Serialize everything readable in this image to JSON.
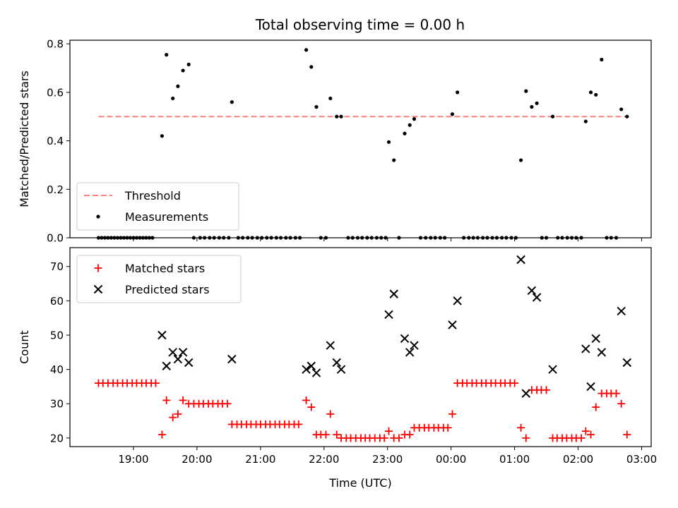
{
  "figure_title": "Total observing time = 0.00 h",
  "chart_data": [
    {
      "type": "scatter",
      "ylabel": "Matched/Predicted stars",
      "ylim": [
        0,
        0.815
      ],
      "yticks": [
        "0.0",
        "0.2",
        "0.4",
        "0.6",
        "0.8"
      ],
      "threshold": {
        "label": "Threshold",
        "value": 0.5,
        "color": "#ff7f7f",
        "style": "dashed"
      },
      "legend": {
        "placement": "lower-left",
        "entries": [
          "Threshold",
          "Measurements"
        ]
      },
      "series": [
        {
          "name": "Measurements",
          "color": "#000000",
          "marker": "dot",
          "points": [
            [
              18.45,
              0
            ],
            [
              18.5,
              0
            ],
            [
              18.55,
              0
            ],
            [
              18.6,
              0
            ],
            [
              18.65,
              0
            ],
            [
              18.7,
              0
            ],
            [
              18.75,
              0
            ],
            [
              18.8,
              0
            ],
            [
              18.85,
              0
            ],
            [
              18.9,
              0
            ],
            [
              18.95,
              0
            ],
            [
              19.0,
              0
            ],
            [
              19.05,
              0
            ],
            [
              19.1,
              0
            ],
            [
              19.15,
              0
            ],
            [
              19.2,
              0
            ],
            [
              19.25,
              0
            ],
            [
              19.3,
              0
            ],
            [
              19.45,
              0.42
            ],
            [
              19.52,
              0.755
            ],
            [
              19.62,
              0.575
            ],
            [
              19.7,
              0.625
            ],
            [
              19.78,
              0.69
            ],
            [
              19.87,
              0.715
            ],
            [
              19.95,
              0
            ],
            [
              20.05,
              0
            ],
            [
              20.12,
              0
            ],
            [
              20.2,
              0
            ],
            [
              20.27,
              0
            ],
            [
              20.35,
              0
            ],
            [
              20.42,
              0
            ],
            [
              20.5,
              0
            ],
            [
              20.55,
              0.56
            ],
            [
              20.65,
              0
            ],
            [
              20.72,
              0
            ],
            [
              20.8,
              0
            ],
            [
              20.87,
              0
            ],
            [
              20.95,
              0
            ],
            [
              21.02,
              0
            ],
            [
              21.1,
              0
            ],
            [
              21.17,
              0
            ],
            [
              21.25,
              0
            ],
            [
              21.32,
              0
            ],
            [
              21.4,
              0
            ],
            [
              21.47,
              0
            ],
            [
              21.55,
              0
            ],
            [
              21.62,
              0
            ],
            [
              21.72,
              0.775
            ],
            [
              21.8,
              0.705
            ],
            [
              21.88,
              0.54
            ],
            [
              21.95,
              0
            ],
            [
              22.03,
              0
            ],
            [
              22.1,
              0.575
            ],
            [
              22.2,
              0.5
            ],
            [
              22.27,
              0.5
            ],
            [
              22.38,
              0
            ],
            [
              22.45,
              0
            ],
            [
              22.53,
              0
            ],
            [
              22.6,
              0
            ],
            [
              22.68,
              0
            ],
            [
              22.75,
              0
            ],
            [
              22.83,
              0
            ],
            [
              22.9,
              0
            ],
            [
              22.97,
              0
            ],
            [
              23.02,
              0.395
            ],
            [
              23.1,
              0.32
            ],
            [
              23.18,
              0
            ],
            [
              23.27,
              0.43
            ],
            [
              23.35,
              0.465
            ],
            [
              23.42,
              0.49
            ],
            [
              23.52,
              0
            ],
            [
              23.6,
              0
            ],
            [
              23.68,
              0
            ],
            [
              23.75,
              0
            ],
            [
              23.83,
              0
            ],
            [
              23.9,
              0
            ],
            [
              24.02,
              0.51
            ],
            [
              24.1,
              0.6
            ],
            [
              24.2,
              0
            ],
            [
              24.28,
              0
            ],
            [
              24.35,
              0
            ],
            [
              24.42,
              0
            ],
            [
              24.5,
              0
            ],
            [
              24.57,
              0
            ],
            [
              24.65,
              0
            ],
            [
              24.72,
              0
            ],
            [
              24.8,
              0
            ],
            [
              24.87,
              0
            ],
            [
              24.95,
              0
            ],
            [
              25.02,
              0
            ],
            [
              25.1,
              0.32
            ],
            [
              25.18,
              0.605
            ],
            [
              25.27,
              0.54
            ],
            [
              25.35,
              0.555
            ],
            [
              25.43,
              0
            ],
            [
              25.5,
              0
            ],
            [
              25.6,
              0.5
            ],
            [
              25.68,
              0
            ],
            [
              25.75,
              0
            ],
            [
              25.83,
              0
            ],
            [
              25.9,
              0
            ],
            [
              25.97,
              0
            ],
            [
              26.05,
              0
            ],
            [
              26.12,
              0.48
            ],
            [
              26.2,
              0.6
            ],
            [
              26.28,
              0.59
            ],
            [
              26.37,
              0.735
            ],
            [
              26.45,
              0
            ],
            [
              26.52,
              0
            ],
            [
              26.6,
              0
            ],
            [
              26.68,
              0.53
            ],
            [
              26.77,
              0.5
            ]
          ]
        }
      ]
    },
    {
      "type": "scatter",
      "xlabel": "Time (UTC)",
      "ylabel": "Count",
      "xlim": [
        18.0,
        27.15
      ],
      "ylim": [
        17.5,
        75.5
      ],
      "yticks": [
        20,
        30,
        40,
        50,
        60,
        70
      ],
      "xticks": [
        {
          "value": 19,
          "label": "19:00"
        },
        {
          "value": 20,
          "label": "20:00"
        },
        {
          "value": 21,
          "label": "21:00"
        },
        {
          "value": 22,
          "label": "22:00"
        },
        {
          "value": 23,
          "label": "23:00"
        },
        {
          "value": 24,
          "label": "00:00"
        },
        {
          "value": 25,
          "label": "01:00"
        },
        {
          "value": 26,
          "label": "02:00"
        },
        {
          "value": 27,
          "label": "03:00"
        }
      ],
      "legend": {
        "placement": "upper-left",
        "entries": [
          "Matched stars",
          "Predicted stars"
        ]
      },
      "series": [
        {
          "name": "Matched stars",
          "color": "#ff0000",
          "marker": "plus",
          "points": [
            [
              18.45,
              36
            ],
            [
              18.52,
              36
            ],
            [
              18.6,
              36
            ],
            [
              18.68,
              36
            ],
            [
              18.75,
              36
            ],
            [
              18.83,
              36
            ],
            [
              18.9,
              36
            ],
            [
              18.98,
              36
            ],
            [
              19.05,
              36
            ],
            [
              19.13,
              36
            ],
            [
              19.2,
              36
            ],
            [
              19.28,
              36
            ],
            [
              19.35,
              36
            ],
            [
              19.45,
              21
            ],
            [
              19.52,
              31
            ],
            [
              19.62,
              26
            ],
            [
              19.7,
              27
            ],
            [
              19.78,
              31
            ],
            [
              19.87,
              30
            ],
            [
              19.95,
              30
            ],
            [
              20.03,
              30
            ],
            [
              20.1,
              30
            ],
            [
              20.18,
              30
            ],
            [
              20.25,
              30
            ],
            [
              20.33,
              30
            ],
            [
              20.4,
              30
            ],
            [
              20.48,
              30
            ],
            [
              20.55,
              24
            ],
            [
              20.63,
              24
            ],
            [
              20.7,
              24
            ],
            [
              20.78,
              24
            ],
            [
              20.85,
              24
            ],
            [
              20.93,
              24
            ],
            [
              21.0,
              24
            ],
            [
              21.08,
              24
            ],
            [
              21.15,
              24
            ],
            [
              21.23,
              24
            ],
            [
              21.3,
              24
            ],
            [
              21.38,
              24
            ],
            [
              21.45,
              24
            ],
            [
              21.53,
              24
            ],
            [
              21.6,
              24
            ],
            [
              21.72,
              31
            ],
            [
              21.8,
              29
            ],
            [
              21.88,
              21
            ],
            [
              21.95,
              21
            ],
            [
              22.03,
              21
            ],
            [
              22.1,
              27
            ],
            [
              22.2,
              21
            ],
            [
              22.27,
              20
            ],
            [
              22.35,
              20
            ],
            [
              22.42,
              20
            ],
            [
              22.5,
              20
            ],
            [
              22.58,
              20
            ],
            [
              22.65,
              20
            ],
            [
              22.72,
              20
            ],
            [
              22.8,
              20
            ],
            [
              22.88,
              20
            ],
            [
              22.95,
              20
            ],
            [
              23.02,
              22
            ],
            [
              23.1,
              20
            ],
            [
              23.18,
              20
            ],
            [
              23.27,
              21
            ],
            [
              23.35,
              21
            ],
            [
              23.42,
              23
            ],
            [
              23.5,
              23
            ],
            [
              23.58,
              23
            ],
            [
              23.65,
              23
            ],
            [
              23.73,
              23
            ],
            [
              23.8,
              23
            ],
            [
              23.88,
              23
            ],
            [
              23.95,
              23
            ],
            [
              24.02,
              27
            ],
            [
              24.1,
              36
            ],
            [
              24.18,
              36
            ],
            [
              24.25,
              36
            ],
            [
              24.33,
              36
            ],
            [
              24.4,
              36
            ],
            [
              24.48,
              36
            ],
            [
              24.55,
              36
            ],
            [
              24.63,
              36
            ],
            [
              24.7,
              36
            ],
            [
              24.78,
              36
            ],
            [
              24.85,
              36
            ],
            [
              24.93,
              36
            ],
            [
              25.0,
              36
            ],
            [
              25.1,
              23
            ],
            [
              25.18,
              20
            ],
            [
              25.27,
              34
            ],
            [
              25.35,
              34
            ],
            [
              25.42,
              34
            ],
            [
              25.5,
              34
            ],
            [
              25.6,
              20
            ],
            [
              25.67,
              20
            ],
            [
              25.75,
              20
            ],
            [
              25.82,
              20
            ],
            [
              25.9,
              20
            ],
            [
              25.97,
              20
            ],
            [
              26.05,
              20
            ],
            [
              26.12,
              22
            ],
            [
              26.2,
              21
            ],
            [
              26.28,
              29
            ],
            [
              26.37,
              33
            ],
            [
              26.45,
              33
            ],
            [
              26.52,
              33
            ],
            [
              26.6,
              33
            ],
            [
              26.68,
              30
            ],
            [
              26.77,
              21
            ]
          ]
        },
        {
          "name": "Predicted stars",
          "color": "#000000",
          "marker": "x",
          "points": [
            [
              19.45,
              50
            ],
            [
              19.52,
              41
            ],
            [
              19.62,
              45
            ],
            [
              19.7,
              43
            ],
            [
              19.78,
              45
            ],
            [
              19.87,
              42
            ],
            [
              20.55,
              43
            ],
            [
              21.72,
              40
            ],
            [
              21.8,
              41
            ],
            [
              21.88,
              39
            ],
            [
              22.1,
              47
            ],
            [
              22.2,
              42
            ],
            [
              22.27,
              40
            ],
            [
              23.02,
              56
            ],
            [
              23.1,
              62
            ],
            [
              23.27,
              49
            ],
            [
              23.35,
              45
            ],
            [
              23.42,
              47
            ],
            [
              24.02,
              53
            ],
            [
              24.1,
              60
            ],
            [
              25.1,
              72
            ],
            [
              25.18,
              33
            ],
            [
              25.27,
              63
            ],
            [
              25.35,
              61
            ],
            [
              25.6,
              40
            ],
            [
              26.12,
              46
            ],
            [
              26.2,
              35
            ],
            [
              26.28,
              49
            ],
            [
              26.37,
              45
            ],
            [
              26.68,
              57
            ],
            [
              26.77,
              42
            ]
          ]
        }
      ]
    }
  ]
}
